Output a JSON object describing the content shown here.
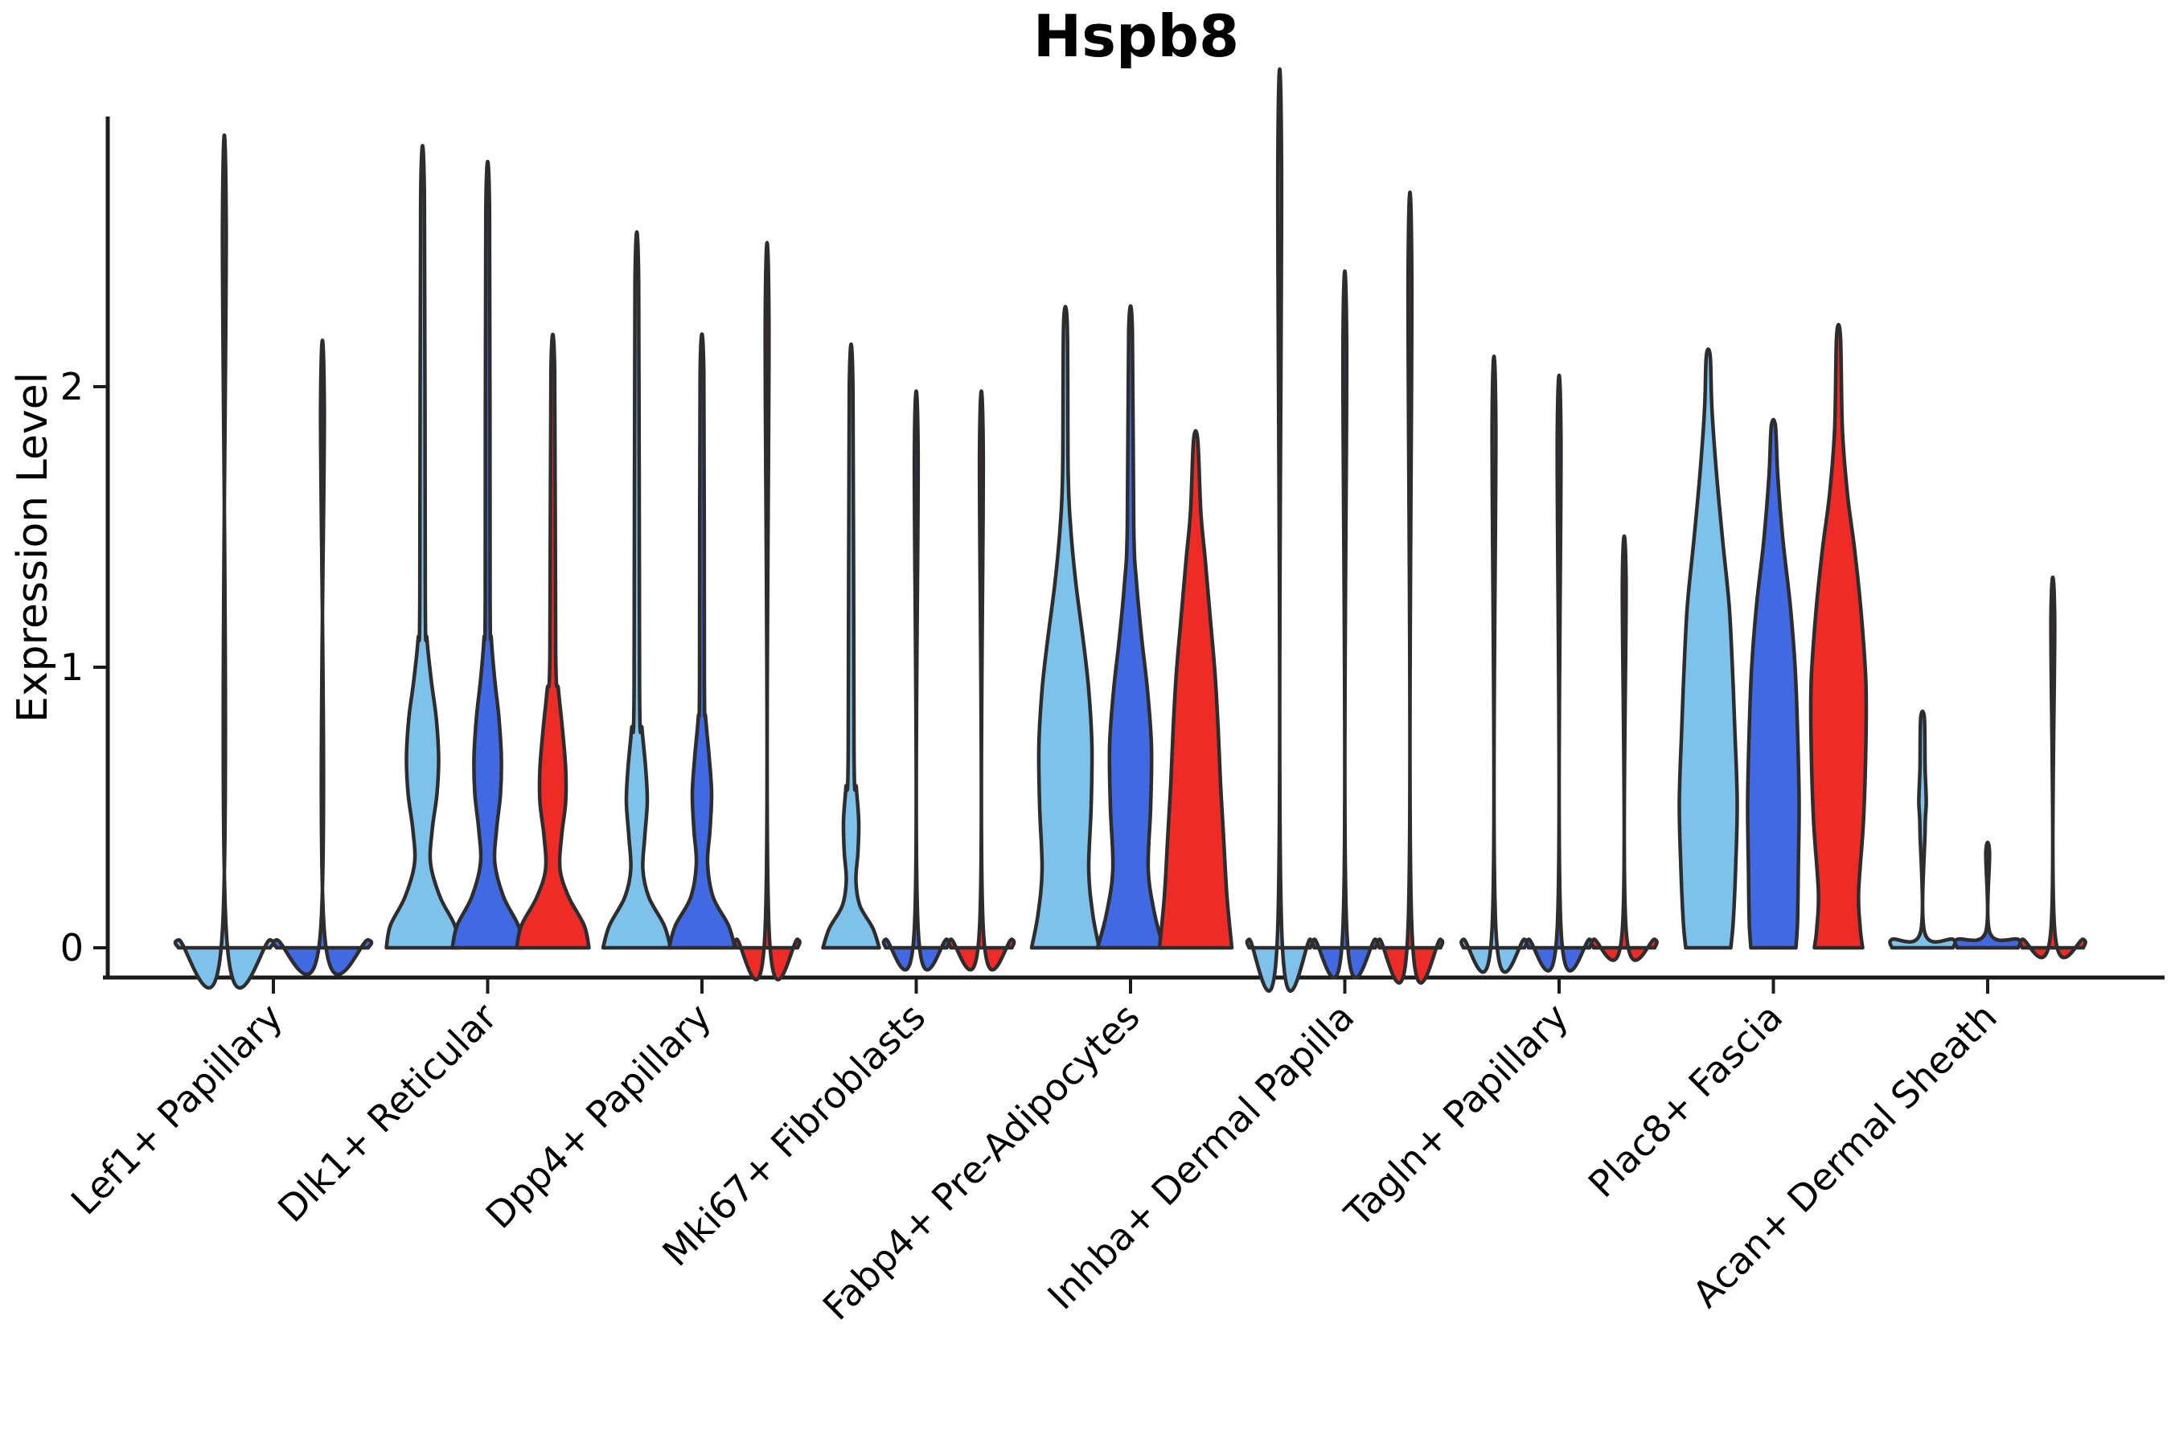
{
  "chart_data": {
    "type": "violin",
    "title": "Hspb8",
    "xlabel": "",
    "ylabel": "Expression Level",
    "yticks": [
      0,
      1,
      2
    ],
    "ylim": [
      -0.1,
      2.95
    ],
    "grid": false,
    "legend": "none",
    "split_colors": [
      "#7EC1EB",
      "#4169E1",
      "#EE2B27"
    ],
    "outline_color": "#2d2d2d",
    "axis_color": "#1c1c1c",
    "categories": [
      "Lef1+ Papillary",
      "Dlk1+ Reticular",
      "Dpp4+ Papillary",
      "Mki67+ Fibroblasts",
      "Fabp4+ Pre-Adipocytes",
      "Inhba+ Dermal Papilla",
      "Tagln+ Papillary",
      "Plac8+ Fascia",
      "Acan+ Dermal Sheath"
    ],
    "groups": [
      {
        "category": "Lef1+ Papillary",
        "violins": [
          {
            "color_index": 0,
            "max": 2.58,
            "offset": -61,
            "profile": [
              [
                0,
                57
              ],
              [
                0.028,
                57
              ],
              [
                0.05,
                2.6
              ],
              [
                2.58,
                2.3
              ]
            ]
          },
          {
            "color_index": 1,
            "max": 1.93,
            "offset": 61,
            "profile": [
              [
                0,
                57
              ],
              [
                0.028,
                57
              ],
              [
                0.05,
                2.6
              ],
              [
                1.93,
                2.3
              ]
            ]
          }
        ]
      },
      {
        "category": "Dlk1+ Reticular",
        "violins": [
          {
            "color_index": 0,
            "max": 2.68,
            "offset": -81,
            "profile": [
              [
                0,
                45
              ],
              [
                0.08,
                40
              ],
              [
                0.18,
                22
              ],
              [
                0.3,
                10
              ],
              [
                0.42,
                12
              ],
              [
                0.55,
                18
              ],
              [
                0.68,
                20
              ],
              [
                0.82,
                17
              ],
              [
                0.95,
                11
              ],
              [
                1.1,
                5.5
              ],
              [
                1.25,
                3.4
              ],
              [
                2.68,
                2.3
              ]
            ]
          },
          {
            "color_index": 1,
            "max": 2.63,
            "offset": 0,
            "profile": [
              [
                0,
                44
              ],
              [
                0.08,
                38
              ],
              [
                0.18,
                20
              ],
              [
                0.3,
                9
              ],
              [
                0.42,
                11
              ],
              [
                0.55,
                16
              ],
              [
                0.68,
                17
              ],
              [
                0.82,
                14
              ],
              [
                0.95,
                9
              ],
              [
                1.1,
                4.6
              ],
              [
                1.25,
                3
              ],
              [
                2.63,
                2.3
              ]
            ]
          },
          {
            "color_index": 2,
            "max": 2.06,
            "offset": 81,
            "profile": [
              [
                0,
                45
              ],
              [
                0.08,
                39
              ],
              [
                0.18,
                20
              ],
              [
                0.28,
                9
              ],
              [
                0.4,
                11
              ],
              [
                0.52,
                16
              ],
              [
                0.64,
                16
              ],
              [
                0.78,
                12
              ],
              [
                0.92,
                7
              ],
              [
                1.05,
                3.6
              ],
              [
                2.06,
                2.3
              ]
            ]
          }
        ]
      },
      {
        "category": "Dpp4+ Papillary",
        "violins": [
          {
            "color_index": 0,
            "max": 2.37,
            "offset": -81,
            "profile": [
              [
                0,
                42
              ],
              [
                0.08,
                34
              ],
              [
                0.18,
                15
              ],
              [
                0.28,
                7.5
              ],
              [
                0.4,
                10
              ],
              [
                0.52,
                13
              ],
              [
                0.64,
                11
              ],
              [
                0.78,
                6.5
              ],
              [
                0.92,
                3.4
              ],
              [
                2.37,
                2.3
              ]
            ]
          },
          {
            "color_index": 1,
            "max": 2.05,
            "offset": 0,
            "profile": [
              [
                0,
                41
              ],
              [
                0.08,
                33
              ],
              [
                0.18,
                14
              ],
              [
                0.3,
                7
              ],
              [
                0.42,
                10
              ],
              [
                0.55,
                12
              ],
              [
                0.68,
                9
              ],
              [
                0.82,
                4.6
              ],
              [
                0.95,
                3
              ],
              [
                2.05,
                2.3
              ]
            ]
          },
          {
            "color_index": 2,
            "max": 2.24,
            "offset": 81,
            "profile": [
              [
                0,
                38
              ],
              [
                0.03,
                38
              ],
              [
                0.055,
                2.6
              ],
              [
                2.24,
                2.3
              ]
            ]
          }
        ]
      },
      {
        "category": "Mki67+ Fibroblasts",
        "violins": [
          {
            "color_index": 0,
            "max": 1.99,
            "offset": -81,
            "profile": [
              [
                0,
                35
              ],
              [
                0.07,
                27
              ],
              [
                0.15,
                11
              ],
              [
                0.24,
                6
              ],
              [
                0.34,
                8.5
              ],
              [
                0.45,
                9.5
              ],
              [
                0.57,
                6.5
              ],
              [
                0.7,
                3.6
              ],
              [
                1.99,
                2.3
              ]
            ]
          },
          {
            "color_index": 1,
            "max": 1.77,
            "offset": 0,
            "profile": [
              [
                0,
                38
              ],
              [
                0.03,
                38
              ],
              [
                0.055,
                2.6
              ],
              [
                1.77,
                2.3
              ]
            ]
          },
          {
            "color_index": 2,
            "max": 1.77,
            "offset": 81,
            "profile": [
              [
                0,
                38
              ],
              [
                0.03,
                38
              ],
              [
                0.055,
                2.6
              ],
              [
                1.77,
                2.3
              ]
            ]
          }
        ]
      },
      {
        "category": "Fabp4+ Pre-Adipocytes",
        "violins": [
          {
            "color_index": 0,
            "max": 2.22,
            "offset": -81,
            "profile": [
              [
                0,
                42
              ],
              [
                0.12,
                34
              ],
              [
                0.28,
                29
              ],
              [
                0.5,
                32
              ],
              [
                0.72,
                33
              ],
              [
                0.92,
                29
              ],
              [
                1.1,
                22
              ],
              [
                1.3,
                13
              ],
              [
                1.5,
                6.5
              ],
              [
                1.7,
                3.4
              ],
              [
                2.22,
                2.3
              ]
            ]
          },
          {
            "color_index": 1,
            "max": 2.2,
            "offset": 0,
            "profile": [
              [
                0,
                41
              ],
              [
                0.12,
                30
              ],
              [
                0.28,
                22
              ],
              [
                0.5,
                25
              ],
              [
                0.72,
                26
              ],
              [
                0.92,
                21
              ],
              [
                1.1,
                14
              ],
              [
                1.3,
                7.5
              ],
              [
                1.5,
                4
              ],
              [
                2.2,
                2.3
              ]
            ]
          },
          {
            "color_index": 2,
            "max": 1.81,
            "offset": 81,
            "profile": [
              [
                0,
                45
              ],
              [
                0.18,
                39
              ],
              [
                0.38,
                35
              ],
              [
                0.58,
                31
              ],
              [
                0.78,
                28
              ],
              [
                0.98,
                24
              ],
              [
                1.18,
                18
              ],
              [
                1.38,
                12
              ],
              [
                1.55,
                6.5
              ],
              [
                1.81,
                2.6
              ]
            ]
          }
        ]
      },
      {
        "category": "Inhba+ Dermal Papilla",
        "violins": [
          {
            "color_index": 0,
            "max": 2.79,
            "offset": -81,
            "profile": [
              [
                0,
                38
              ],
              [
                0.03,
                38
              ],
              [
                0.055,
                2.6
              ],
              [
                2.79,
                2.3
              ]
            ]
          },
          {
            "color_index": 1,
            "max": 2.15,
            "offset": 0,
            "profile": [
              [
                0,
                38
              ],
              [
                0.03,
                38
              ],
              [
                0.055,
                2.6
              ],
              [
                2.15,
                2.3
              ]
            ]
          },
          {
            "color_index": 2,
            "max": 2.4,
            "offset": 81,
            "profile": [
              [
                0,
                38
              ],
              [
                0.03,
                38
              ],
              [
                0.055,
                2.6
              ],
              [
                2.4,
                2.3
              ]
            ]
          }
        ]
      },
      {
        "category": "Tagln+ Papillary",
        "violins": [
          {
            "color_index": 0,
            "max": 1.88,
            "offset": -81,
            "profile": [
              [
                0,
                38
              ],
              [
                0.03,
                38
              ],
              [
                0.055,
                2.6
              ],
              [
                1.88,
                2.3
              ]
            ]
          },
          {
            "color_index": 1,
            "max": 1.82,
            "offset": 0,
            "profile": [
              [
                0,
                38
              ],
              [
                0.03,
                38
              ],
              [
                0.055,
                2.6
              ],
              [
                1.82,
                2.3
              ]
            ]
          },
          {
            "color_index": 2,
            "max": 1.31,
            "offset": 81,
            "profile": [
              [
                0,
                38
              ],
              [
                0.03,
                38
              ],
              [
                0.055,
                2.6
              ],
              [
                1.31,
                2.3
              ]
            ]
          }
        ]
      },
      {
        "category": "Plac8+ Fascia",
        "violins": [
          {
            "color_index": 0,
            "max": 2.11,
            "offset": -81,
            "profile": [
              [
                0,
                28
              ],
              [
                0.09,
                31
              ],
              [
                0.28,
                34
              ],
              [
                0.52,
                36
              ],
              [
                0.78,
                33
              ],
              [
                1.0,
                30
              ],
              [
                1.22,
                26
              ],
              [
                1.45,
                18
              ],
              [
                1.7,
                10
              ],
              [
                1.92,
                4.6
              ],
              [
                2.11,
                2.4
              ]
            ]
          },
          {
            "color_index": 1,
            "max": 1.86,
            "offset": 0,
            "profile": [
              [
                0,
                28
              ],
              [
                0.09,
                30
              ],
              [
                0.28,
                31
              ],
              [
                0.52,
                32
              ],
              [
                0.78,
                30
              ],
              [
                1.0,
                27
              ],
              [
                1.22,
                21
              ],
              [
                1.45,
                12
              ],
              [
                1.68,
                5.5
              ],
              [
                1.86,
                2.6
              ]
            ]
          },
          {
            "color_index": 2,
            "max": 2.18,
            "offset": 81,
            "profile": [
              [
                0,
                30
              ],
              [
                0.07,
                27
              ],
              [
                0.2,
                25
              ],
              [
                0.45,
                31
              ],
              [
                0.72,
                34
              ],
              [
                0.95,
                34
              ],
              [
                1.2,
                28
              ],
              [
                1.42,
                20
              ],
              [
                1.62,
                11
              ],
              [
                1.85,
                4.8
              ],
              [
                2.18,
                2.4
              ]
            ]
          }
        ]
      },
      {
        "category": "Acan+ Dermal Sheath",
        "violins": [
          {
            "color_index": 0,
            "max": 0.82,
            "offset": -81,
            "profile": [
              [
                0,
                38
              ],
              [
                0.03,
                38
              ],
              [
                0.055,
                2.6
              ],
              [
                0.42,
                3.2
              ],
              [
                0.52,
                4.6
              ],
              [
                0.64,
                3.2
              ],
              [
                0.82,
                2.3
              ]
            ]
          },
          {
            "color_index": 1,
            "max": 0.34,
            "offset": 0,
            "profile": [
              [
                0,
                38
              ],
              [
                0.03,
                38
              ],
              [
                0.055,
                2.6
              ],
              [
                0.34,
                2.3
              ]
            ]
          },
          {
            "color_index": 2,
            "max": 1.18,
            "offset": 81,
            "profile": [
              [
                0,
                38
              ],
              [
                0.03,
                38
              ],
              [
                0.055,
                2.6
              ],
              [
                1.18,
                2.3
              ]
            ]
          }
        ]
      }
    ]
  }
}
